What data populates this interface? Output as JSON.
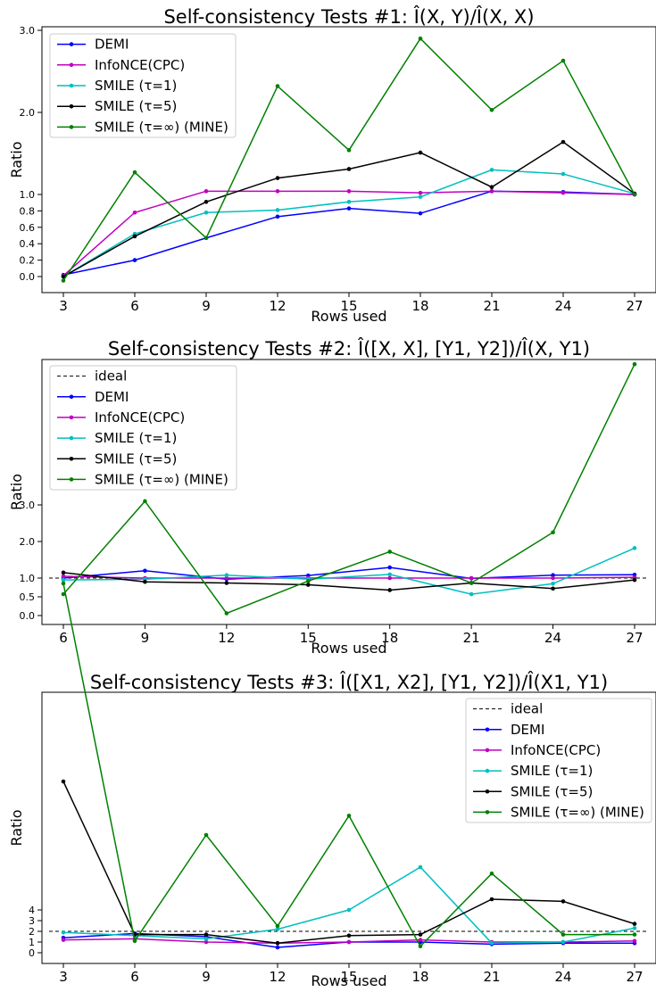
{
  "chart_data": [
    {
      "type": "line",
      "title": "Self-consistency Tests #1: Î(X, Y)/Î(X, X)",
      "xlabel": "Rows used",
      "ylabel": "Ratio",
      "x": [
        3,
        6,
        9,
        12,
        15,
        18,
        21,
        24,
        27
      ],
      "xticks": [
        "3",
        "6",
        "9",
        "12",
        "15",
        "18",
        "21",
        "24",
        "27"
      ],
      "yticks": [
        0.0,
        0.2,
        0.4,
        0.6,
        0.8,
        1.0,
        2.0,
        3.0
      ],
      "ytick_labels": [
        "0.0",
        "0.2",
        "0.4",
        "0.6",
        "0.8",
        "1.0",
        "2.0",
        "3.0"
      ],
      "ylim": [
        -0.2,
        3.0
      ],
      "legend_position": "top-left",
      "series": [
        {
          "name": "DEMI",
          "color": "#0000ff",
          "values": [
            0.02,
            0.2,
            0.47,
            0.73,
            0.83,
            0.77,
            1.04,
            1.03,
            1.0
          ]
        },
        {
          "name": "InfoNCE(CPC)",
          "color": "#c000c0",
          "values": [
            0.01,
            0.78,
            1.04,
            1.04,
            1.04,
            1.02,
            1.04,
            1.02,
            1.0
          ]
        },
        {
          "name": "SMILE (τ=1)",
          "color": "#00bfbf",
          "values": [
            0.0,
            0.52,
            0.78,
            0.81,
            0.91,
            0.97,
            1.3,
            1.25,
            1.01
          ]
        },
        {
          "name": "SMILE (τ=5)",
          "color": "#000000",
          "values": [
            0.0,
            0.49,
            0.91,
            1.2,
            1.31,
            1.51,
            1.09,
            1.64,
            1.01
          ]
        },
        {
          "name": "SMILE (τ=∞) (MINE)",
          "color": "#008000",
          "values": [
            -0.05,
            1.27,
            0.47,
            2.32,
            1.54,
            2.9,
            2.03,
            2.63,
            1.0
          ]
        }
      ]
    },
    {
      "type": "line",
      "title": "Self-consistency Tests #2: Î([X, X], [Y1, Y2])/Î(X, Y1)",
      "xlabel": "Rows used",
      "ylabel": "Ratio",
      "x": [
        6,
        9,
        12,
        15,
        18,
        21,
        24,
        27
      ],
      "xticks": [
        "6",
        "9",
        "12",
        "15",
        "18",
        "21",
        "24",
        "27"
      ],
      "yticks": [
        0.0,
        0.5,
        1.0,
        2.0,
        3.0
      ],
      "ytick_labels": [
        "0.0",
        "0.5",
        "1.0",
        "2.0",
        "3.0"
      ],
      "ylim": [
        -0.25,
        7.0
      ],
      "legend_position": "top-left",
      "ideal": 1.0,
      "series": [
        {
          "name": "ideal",
          "color": "#000000",
          "dashed": true,
          "values": [
            1.0,
            1.0,
            1.0,
            1.0,
            1.0,
            1.0,
            1.0,
            1.0
          ]
        },
        {
          "name": "DEMI",
          "color": "#0000ff",
          "values": [
            1.0,
            1.2,
            0.97,
            1.07,
            1.29,
            0.99,
            1.08,
            1.09
          ]
        },
        {
          "name": "InfoNCE(CPC)",
          "color": "#c000c0",
          "values": [
            1.05,
            1.0,
            1.0,
            1.0,
            1.0,
            1.0,
            1.0,
            1.02
          ]
        },
        {
          "name": "SMILE (τ=1)",
          "color": "#00bfbf",
          "values": [
            0.95,
            0.97,
            1.08,
            0.97,
            1.1,
            0.57,
            0.85,
            1.82
          ]
        },
        {
          "name": "SMILE (τ=5)",
          "color": "#000000",
          "values": [
            1.15,
            0.9,
            0.87,
            0.82,
            0.68,
            0.87,
            0.72,
            0.95
          ]
        },
        {
          "name": "SMILE (τ=∞) (MINE)",
          "color": "#008000",
          "values": [
            0.57,
            3.1,
            0.06,
            0.92,
            1.72,
            0.87,
            2.25,
            6.8
          ]
        }
      ]
    },
    {
      "type": "line",
      "title": "Self-consistency Tests #3: Î([X1, X2], [Y1, Y2])/Î(X1, Y1)",
      "xlabel": "Rows used",
      "ylabel": "Ratio",
      "x": [
        3,
        6,
        9,
        12,
        15,
        18,
        21,
        24,
        27
      ],
      "xticks": [
        "3",
        "6",
        "9",
        "12",
        "15",
        "18",
        "21",
        "24",
        "27"
      ],
      "yticks": [
        0,
        1,
        2,
        3,
        4
      ],
      "ytick_labels": [
        "0",
        "1",
        "2",
        "3",
        "4"
      ],
      "ylim": [
        -0.8,
        37.5
      ],
      "legend_position": "top-right",
      "ideal": 2.0,
      "series": [
        {
          "name": "ideal",
          "color": "#000000",
          "dashed": true,
          "values": [
            2.0,
            2.0,
            2.0,
            2.0,
            2.0,
            2.0,
            2.0,
            2.0,
            2.0
          ]
        },
        {
          "name": "DEMI",
          "color": "#0000ff",
          "values": [
            1.4,
            1.8,
            1.5,
            0.5,
            1.0,
            1.0,
            0.8,
            0.9,
            0.9
          ]
        },
        {
          "name": "InfoNCE(CPC)",
          "color": "#c000c0",
          "values": [
            1.2,
            1.3,
            1.0,
            0.9,
            1.0,
            1.2,
            1.0,
            1.0,
            1.1
          ]
        },
        {
          "name": "SMILE (τ=1)",
          "color": "#00bfbf",
          "values": [
            1.9,
            1.6,
            1.3,
            2.2,
            4.0,
            8.0,
            0.9,
            1.0,
            2.3
          ]
        },
        {
          "name": "SMILE (τ=5)",
          "color": "#000000",
          "values": [
            16.0,
            1.7,
            1.7,
            0.9,
            1.6,
            1.7,
            5.0,
            4.8,
            2.7
          ]
        },
        {
          "name": "SMILE (τ=∞) (MINE)",
          "color": "#008000",
          "values": [
            34.5,
            1.1,
            11.0,
            2.5,
            12.8,
            0.6,
            7.4,
            1.7,
            1.7
          ]
        }
      ]
    }
  ]
}
